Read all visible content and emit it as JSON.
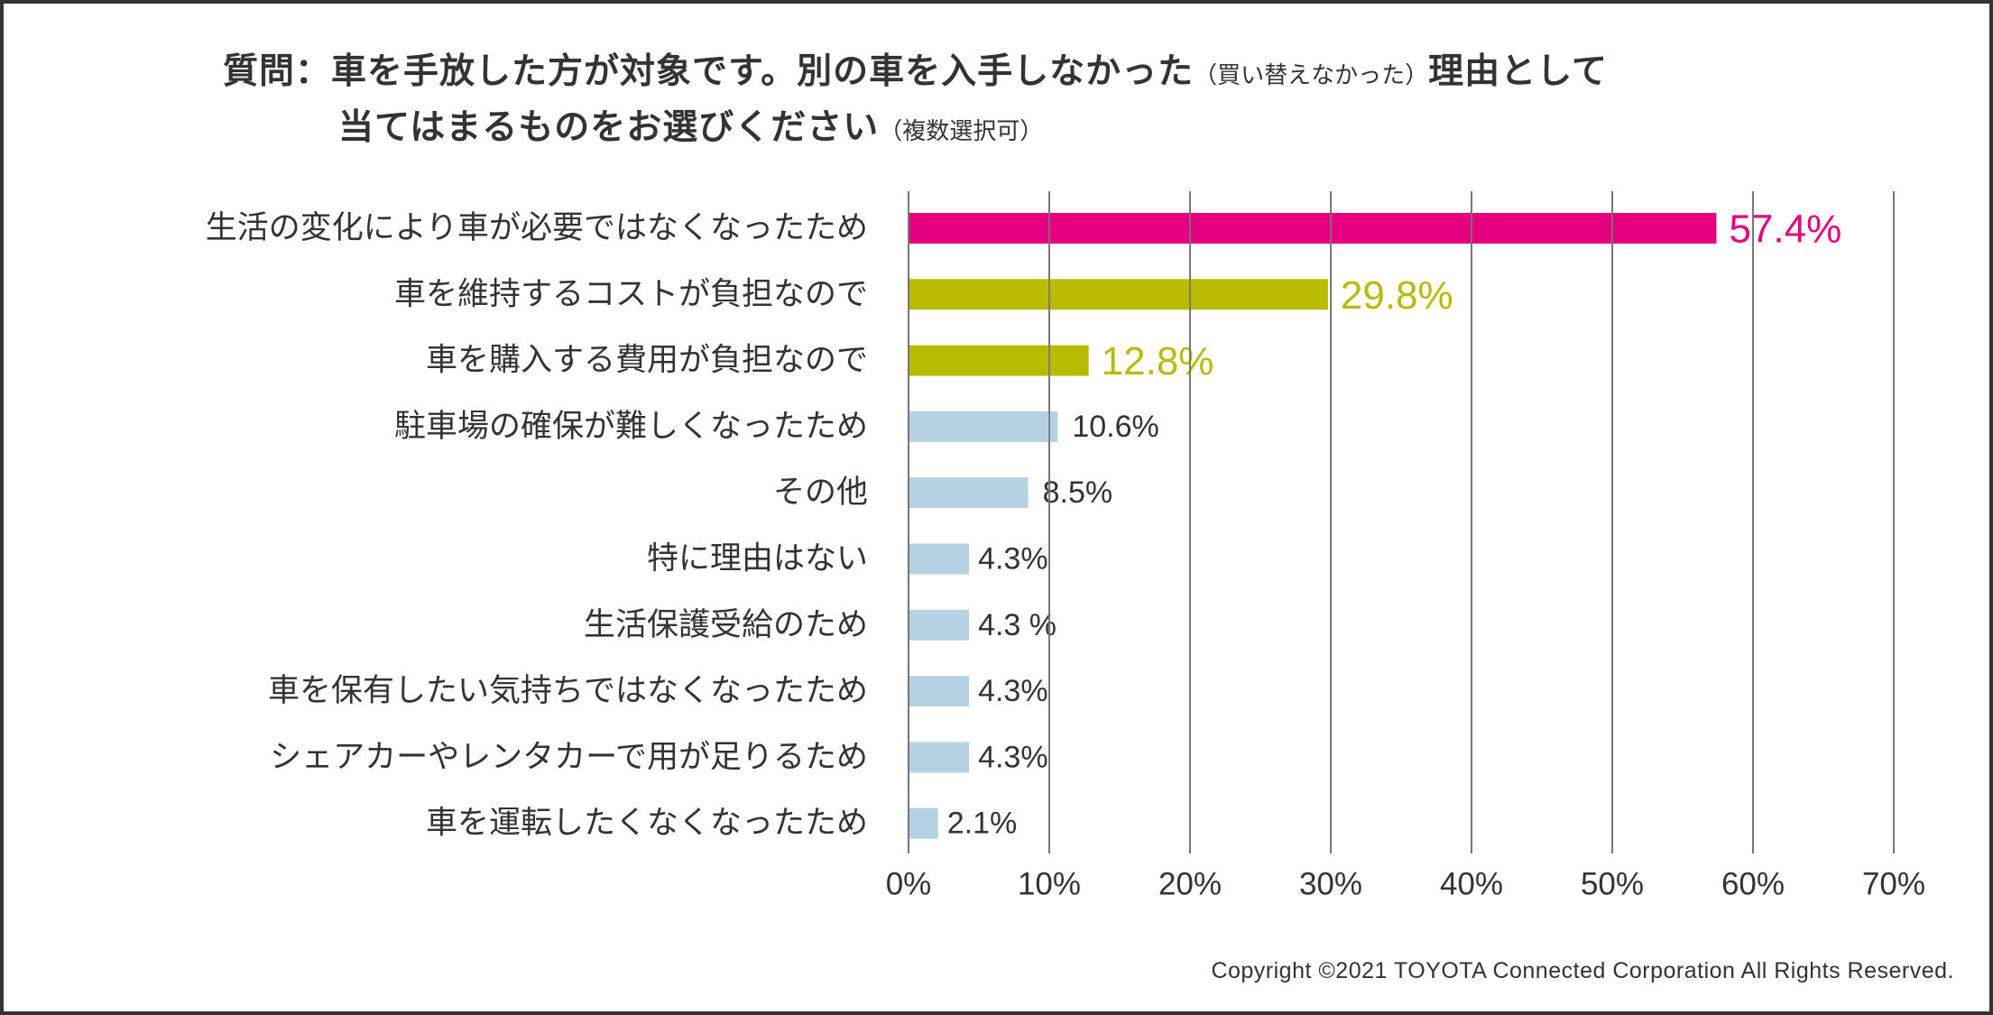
{
  "title": {
    "line1_main": "質問：車を手放した方が対象です。別の車を入手しなかった",
    "line1_paren": "（買い替えなかった）",
    "line1_end": "理由として",
    "line2_main": "当てはまるものをお選びください",
    "line2_paren": "（複数選択可）"
  },
  "copyright": "Copyright ©2021 TOYOTA Connected Corporation All Rights Reserved.",
  "colors": {
    "highlight_primary": "#E4007F",
    "highlight_secondary": "#B9BB00",
    "default_bar": "#B4D2E2",
    "text": "#333333",
    "grid": "#777777"
  },
  "chart_data": {
    "type": "bar",
    "orientation": "horizontal",
    "title": "質問：車を手放した方が対象です。別の車を入手しなかった（買い替えなかった）理由として当てはまるものをお選びください（複数選択可）",
    "xlabel": "",
    "ylabel": "",
    "xlim": [
      0,
      70
    ],
    "grid": true,
    "x_ticks": [
      0,
      10,
      20,
      30,
      40,
      50,
      60,
      70
    ],
    "x_tick_labels": [
      "0%",
      "10%",
      "20%",
      "30%",
      "40%",
      "50%",
      "60%",
      "70%"
    ],
    "categories": [
      "生活の変化により車が必要ではなくなったため",
      "車を維持するコストが負担なので",
      "車を購入する費用が負担なので",
      "駐車場の確保が難しくなったため",
      "その他",
      "特に理由はない",
      "生活保護受給のため",
      "車を保有したい気持ちではなくなったため",
      "シェアカーやレンタカーで用が足りるため",
      "車を運転したくなくなったため"
    ],
    "values": [
      57.4,
      29.8,
      12.8,
      10.6,
      8.5,
      4.3,
      4.3,
      4.3,
      4.3,
      2.1
    ],
    "value_labels": [
      "57.4%",
      "29.8%",
      "12.8%",
      "10.6%",
      "8.5%",
      "4.3%",
      "4.3 %",
      "4.3%",
      "4.3%",
      "2.1%"
    ],
    "bar_color_keys": [
      "highlight_primary",
      "highlight_secondary",
      "highlight_secondary",
      "default_bar",
      "default_bar",
      "default_bar",
      "default_bar",
      "default_bar",
      "default_bar",
      "default_bar"
    ],
    "emphasized": [
      true,
      true,
      true,
      false,
      false,
      false,
      false,
      false,
      false,
      false
    ]
  }
}
